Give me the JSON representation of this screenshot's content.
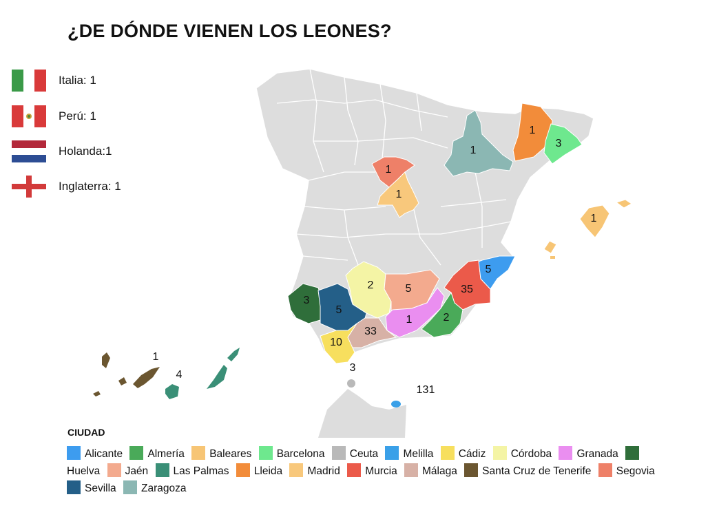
{
  "title": "¿DE DÓNDE VIENEN LOS LEONES?",
  "countries": [
    {
      "label": "Italia: 1",
      "flag": "italy-flag-icon"
    },
    {
      "label": "Perú: 1",
      "flag": "peru-flag-icon"
    },
    {
      "label": "Holanda:1",
      "flag": "netherlands-flag-icon"
    },
    {
      "label": "Inglaterra: 1",
      "flag": "england-flag-icon"
    }
  ],
  "regions": [
    {
      "name": "Alicante",
      "value": "5",
      "color": "#3d9cef"
    },
    {
      "name": "Almería",
      "value": "2",
      "color": "#4aaa59"
    },
    {
      "name": "Baleares",
      "value": "1",
      "color": "#f7c575"
    },
    {
      "name": "Barcelona",
      "value": "3",
      "color": "#6ee88e"
    },
    {
      "name": "Ceuta",
      "value": "3",
      "color": "#b9b9b9"
    },
    {
      "name": "Melilla",
      "value": "131",
      "color": "#3aa0e8"
    },
    {
      "name": "Cádiz",
      "value": "10",
      "color": "#f7df5e"
    },
    {
      "name": "Córdoba",
      "value": "2",
      "color": "#f4f4a5"
    },
    {
      "name": "Granada",
      "value": "1",
      "color": "#ea8ef0"
    },
    {
      "name": "Huelva",
      "value": "3",
      "color": "#2f6e3a"
    },
    {
      "name": "Jaén",
      "value": "5",
      "color": "#f3aa8e"
    },
    {
      "name": "Las Palmas",
      "value": "4",
      "color": "#3a8f77"
    },
    {
      "name": "Lleida",
      "value": "1",
      "color": "#f28c3a"
    },
    {
      "name": "Madrid",
      "value": "1",
      "color": "#f8c87c"
    },
    {
      "name": "Murcia",
      "value": "35",
      "color": "#eb5a4a"
    },
    {
      "name": "Málaga",
      "value": "33",
      "color": "#d7b1a6"
    },
    {
      "name": "Santa Cruz de Tenerife",
      "value": "1",
      "color": "#6b5630"
    },
    {
      "name": "Segovia",
      "value": "1",
      "color": "#ee8068"
    },
    {
      "name": "Sevilla",
      "value": "5",
      "color": "#245f88"
    },
    {
      "name": "Zaragoza",
      "value": "1",
      "color": "#8bb7b3"
    }
  ],
  "legend": {
    "title": "CIUDAD"
  },
  "base_color": "#dddddd"
}
